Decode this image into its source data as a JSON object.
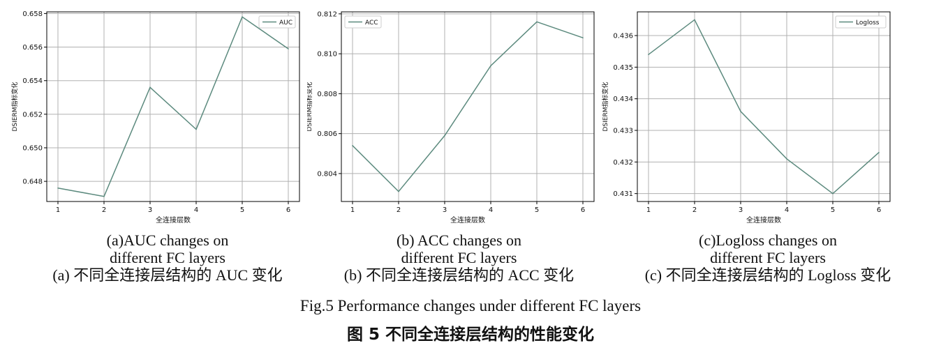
{
  "colors": {
    "line": "#5c8a7e",
    "grid": "#b0b0b0",
    "axis": "#000000",
    "text": "#111111"
  },
  "chart_data": [
    {
      "type": "line",
      "x": [
        1,
        2,
        3,
        4,
        5,
        6
      ],
      "series": [
        {
          "name": "AUC",
          "values": [
            0.6476,
            0.6471,
            0.6536,
            0.6511,
            0.6578,
            0.6559
          ]
        }
      ],
      "xlabel": "全连接层数",
      "ylabel": "DSIERM指标变化",
      "ylim": [
        0.6468,
        0.6581
      ],
      "yticks": [
        "0.648",
        "0.650",
        "0.652",
        "0.654",
        "0.656",
        "0.658"
      ],
      "ytick_values": [
        0.648,
        0.65,
        0.652,
        0.654,
        0.656,
        0.658
      ],
      "xticks": [
        "1",
        "2",
        "3",
        "4",
        "5",
        "6"
      ],
      "grid": true,
      "legend": "top-right"
    },
    {
      "type": "line",
      "x": [
        1,
        2,
        3,
        4,
        5,
        6
      ],
      "series": [
        {
          "name": "ACC",
          "values": [
            0.8054,
            0.8031,
            0.8059,
            0.8094,
            0.8116,
            0.8108
          ]
        }
      ],
      "xlabel": "全连接层数",
      "ylabel": "DSIERM指标变化",
      "ylim": [
        0.8026,
        0.8121
      ],
      "yticks": [
        "0.804",
        "0.806",
        "0.808",
        "0.810",
        "0.812"
      ],
      "ytick_values": [
        0.804,
        0.806,
        0.808,
        0.81,
        0.812
      ],
      "xticks": [
        "1",
        "2",
        "3",
        "4",
        "5",
        "6"
      ],
      "grid": true,
      "legend": "top-left"
    },
    {
      "type": "line",
      "x": [
        1,
        2,
        3,
        4,
        5,
        6
      ],
      "series": [
        {
          "name": "Logloss",
          "values": [
            0.4354,
            0.4365,
            0.4336,
            0.4321,
            0.431,
            0.4323
          ]
        }
      ],
      "xlabel": "全连接层数",
      "ylabel": "DSIERM指标变化",
      "ylim": [
        0.43075,
        0.43675
      ],
      "yticks": [
        "0.431",
        "0.432",
        "0.433",
        "0.434",
        "0.435",
        "0.436"
      ],
      "ytick_values": [
        0.431,
        0.432,
        0.433,
        0.434,
        0.435,
        0.436
      ],
      "xticks": [
        "1",
        "2",
        "3",
        "4",
        "5",
        "6"
      ],
      "grid": true,
      "legend": "top-right"
    }
  ],
  "captions": [
    {
      "en_line1": "(a)AUC changes on",
      "en_line2": "different FC layers",
      "cn": "(a)  不同全连接层结构的 AUC 变化"
    },
    {
      "en_line1": "(b) ACC changes on",
      "en_line2": "different FC layers",
      "cn": "(b)  不同全连接层结构的 ACC 变化"
    },
    {
      "en_line1": "(c)Logloss changes on",
      "en_line2": "different FC layers",
      "cn": "(c)  不同全连接层结构的 Logloss 变化"
    }
  ],
  "figure": {
    "en": "Fig.5    Performance changes under different FC layers",
    "cn": "图 5    不同全连接层结构的性能变化"
  }
}
